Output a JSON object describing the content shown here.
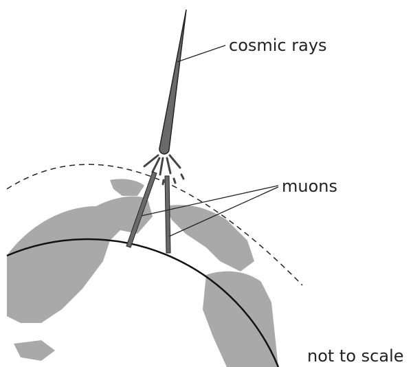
{
  "labels": {
    "cosmic_rays": "cosmic rays",
    "muons": "muons",
    "scale_note": "not to scale"
  }
}
